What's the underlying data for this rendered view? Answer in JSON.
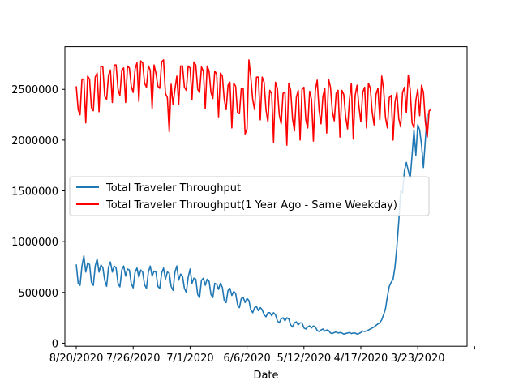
{
  "chart_data": {
    "type": "line",
    "title": "",
    "xlabel": "Date",
    "ylabel": "",
    "ylim": [
      -30000,
      2920000
    ],
    "x_range": [
      -6,
      206
    ],
    "x_ticks": [
      {
        "x": 0,
        "label": "8/20/2020"
      },
      {
        "x": 30,
        "label": "7/26/2020"
      },
      {
        "x": 60,
        "label": "7/1/2020"
      },
      {
        "x": 90,
        "label": "6/6/2020"
      },
      {
        "x": 120,
        "label": "5/12/2020"
      },
      {
        "x": 150,
        "label": "4/17/2020"
      },
      {
        "x": 180,
        "label": "3/23/2020"
      },
      {
        "x": 210,
        "label": ""
      }
    ],
    "y_ticks": [
      0,
      500000,
      1000000,
      1500000,
      2000000,
      2500000
    ],
    "grid": false,
    "legend_position": "center-left",
    "series": [
      {
        "name": "Total Traveler Throughput",
        "color": "#1f77b4",
        "values": [
          775000,
          590000,
          570000,
          760000,
          860000,
          700000,
          790000,
          775000,
          600000,
          570000,
          760000,
          830000,
          700000,
          770000,
          745000,
          620000,
          560000,
          750000,
          800000,
          700000,
          760000,
          740000,
          590000,
          555000,
          720000,
          760000,
          660000,
          730000,
          720000,
          585000,
          545000,
          700000,
          740000,
          650000,
          720000,
          700000,
          575000,
          540000,
          700000,
          760000,
          660000,
          710000,
          700000,
          560000,
          540000,
          690000,
          740000,
          630000,
          700000,
          690000,
          560000,
          520000,
          700000,
          760000,
          620000,
          680000,
          660000,
          540000,
          500000,
          650000,
          730000,
          590000,
          640000,
          630000,
          480000,
          450000,
          620000,
          640000,
          570000,
          630000,
          610000,
          480000,
          450000,
          590000,
          580000,
          530000,
          590000,
          550000,
          420000,
          400000,
          520000,
          540000,
          470000,
          510000,
          490000,
          380000,
          350000,
          440000,
          450000,
          400000,
          440000,
          420000,
          330000,
          300000,
          350000,
          360000,
          320000,
          350000,
          330000,
          280000,
          260000,
          300000,
          300000,
          270000,
          300000,
          280000,
          220000,
          200000,
          240000,
          250000,
          220000,
          250000,
          240000,
          180000,
          160000,
          200000,
          210000,
          180000,
          200000,
          200000,
          150000,
          140000,
          160000,
          170000,
          150000,
          170000,
          160000,
          125000,
          115000,
          130000,
          140000,
          120000,
          130000,
          125000,
          100000,
          95000,
          105000,
          110000,
          100000,
          105000,
          100000,
          90000,
          95000,
          100000,
          105000,
          95000,
          100000,
          100000,
          90000,
          95000,
          105000,
          120000,
          115000,
          120000,
          130000,
          140000,
          150000,
          160000,
          175000,
          190000,
          200000,
          230000,
          280000,
          340000,
          460000,
          560000,
          600000,
          630000,
          750000,
          950000,
          1200000,
          1500000,
          1480000,
          1700000,
          1780000,
          1700000,
          1620000,
          1850000,
          2100000,
          1850000,
          2150000,
          2100000,
          1950000,
          1730000,
          2000000,
          2260000
        ]
      },
      {
        "name": "Total Traveler Throughput(1 Year Ago - Same Weekday)",
        "color": "#ff0000",
        "values": [
          2530000,
          2300000,
          2250000,
          2600000,
          2600000,
          2170000,
          2630000,
          2600000,
          2320000,
          2290000,
          2620000,
          2660000,
          2280000,
          2730000,
          2720000,
          2430000,
          2400000,
          2640000,
          2690000,
          2370000,
          2740000,
          2740000,
          2500000,
          2440000,
          2690000,
          2710000,
          2370000,
          2730000,
          2710000,
          2530000,
          2470000,
          2700000,
          2760000,
          2380000,
          2780000,
          2760000,
          2560000,
          2520000,
          2730000,
          2690000,
          2310000,
          2740000,
          2660000,
          2530000,
          2510000,
          2770000,
          2790000,
          2460000,
          2420000,
          2080000,
          2550000,
          2350000,
          2500000,
          2630000,
          2350000,
          2730000,
          2730000,
          2520000,
          2490000,
          2730000,
          2710000,
          2400000,
          2770000,
          2740000,
          2500000,
          2470000,
          2720000,
          2680000,
          2310000,
          2730000,
          2680000,
          2470000,
          2410000,
          2680000,
          2650000,
          2230000,
          2660000,
          2630000,
          2400000,
          2300000,
          2540000,
          2570000,
          2120000,
          2560000,
          2530000,
          2270000,
          2260000,
          2510000,
          2510000,
          2060000,
          2110000,
          2790000,
          2620000,
          2400000,
          2300000,
          2620000,
          2620000,
          2200000,
          2620000,
          2570000,
          2300000,
          2180000,
          2490000,
          2460000,
          1980000,
          2570000,
          2510000,
          2250000,
          2160000,
          2460000,
          2470000,
          1950000,
          2560000,
          2490000,
          2210000,
          2090000,
          2420000,
          2490000,
          2000000,
          2500000,
          2520000,
          2200000,
          2120000,
          2480000,
          2400000,
          1990000,
          2490000,
          2590000,
          2290000,
          2160000,
          2430000,
          2510000,
          2070000,
          2600000,
          2520000,
          2280000,
          2190000,
          2460000,
          2490000,
          2030000,
          2490000,
          2450000,
          2230000,
          2110000,
          2400000,
          2560000,
          2010000,
          2440000,
          2540000,
          2330000,
          2180000,
          2470000,
          2520000,
          2120000,
          2560000,
          2510000,
          2270000,
          2150000,
          2450000,
          2510000,
          2200000,
          2630000,
          2500000,
          2220000,
          2120000,
          2420000,
          2440000,
          2000000,
          2370000,
          2470000,
          2210000,
          2130000,
          2470000,
          2520000,
          2270000,
          2640000,
          2500000,
          2170000,
          2120000,
          2390000,
          2500000,
          2240000,
          2540000,
          2470000,
          2180000,
          2030000,
          2290000,
          2300000
        ]
      }
    ]
  }
}
